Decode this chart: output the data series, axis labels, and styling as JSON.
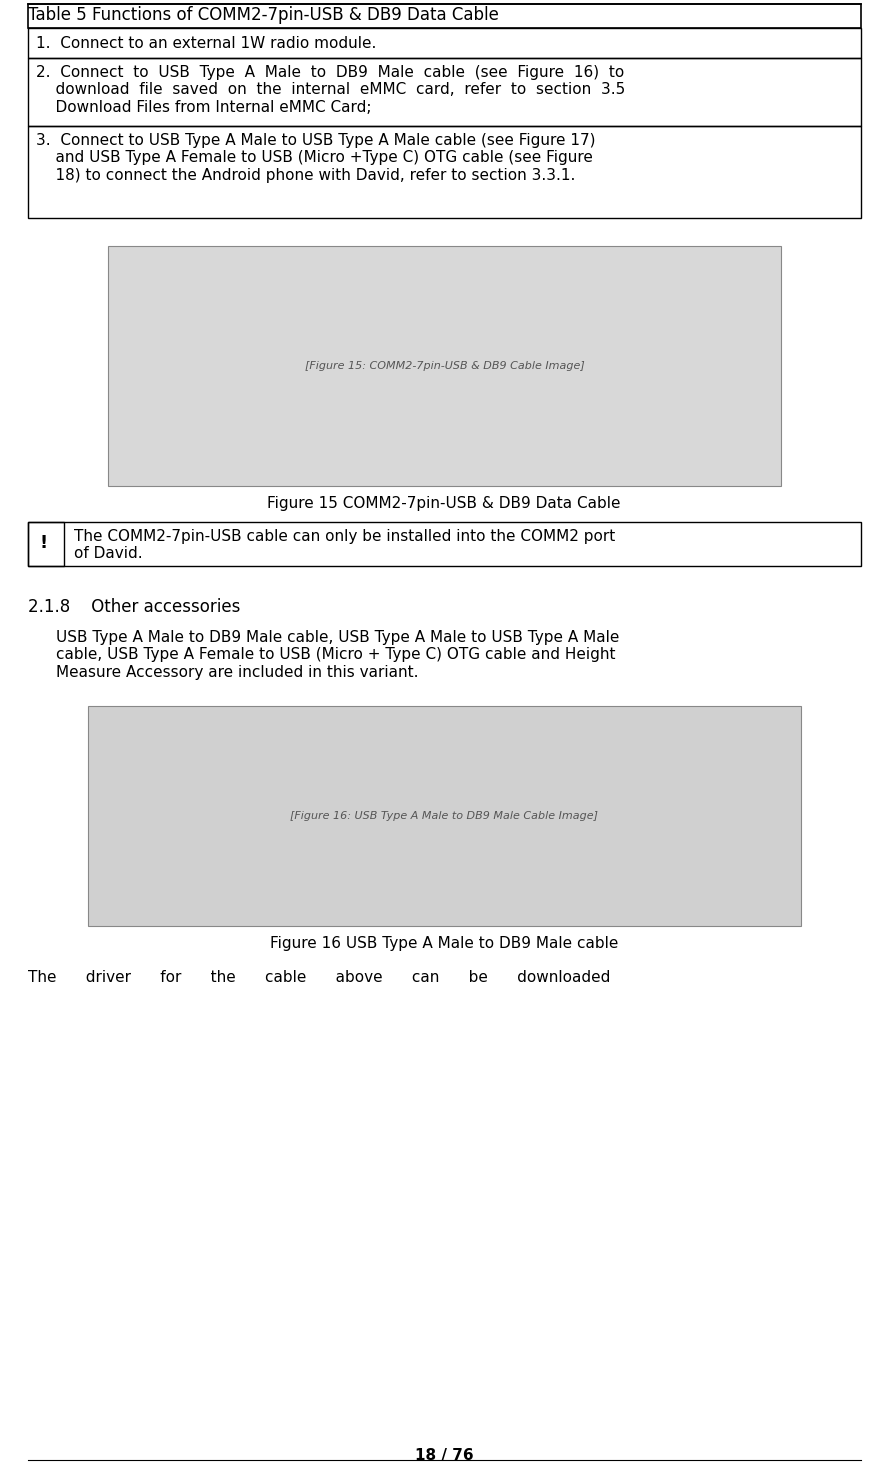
{
  "page_number": "18 / 76",
  "table_title": "Table 5 Functions of COMM2-7pin-USB & DB9 Data Cable",
  "table_rows": [
    "1. Connect to an external 1W radio module.",
    "2. Connect to USB Type A Male to DB9 Male cable (see Figure 16) to\ndownload file saved on the internal eMMC card, refer to section 3.5\nDownload Files from Internal eMMC Card;",
    "3. Connect to USB Type A Male to USB Type A Male cable (see Figure 17)\nand USB Type A Female to USB (Micro +Type C) OTG cable (see Figure\n18) to connect the Android phone with David, refer to section 3.3.1."
  ],
  "fig15_caption": "Figure 15 COMM2-7pin-USB & DB9 Data Cable",
  "warning_symbol": "!",
  "warning_text": "The COMM2-7pin-USB cable can only be installed into the COMM2 port\nof David.",
  "section_heading": "2.1.8    Other accessories",
  "section_body": "USB Type A Male to DB9 Male cable, USB Type A Male to USB Type A Male\ncable, USB Type A Female to USB (Micro + Type C) OTG cable and Height\nMeasure Accessory are included in this variant.",
  "fig16_caption": "Figure 16 USB Type A Male to DB9 Male cable",
  "last_line": "The      driver      for      the      cable      above      can      be      downloaded",
  "bg_color": "#ffffff",
  "text_color": "#000000",
  "font_size": 11,
  "title_font_size": 12
}
